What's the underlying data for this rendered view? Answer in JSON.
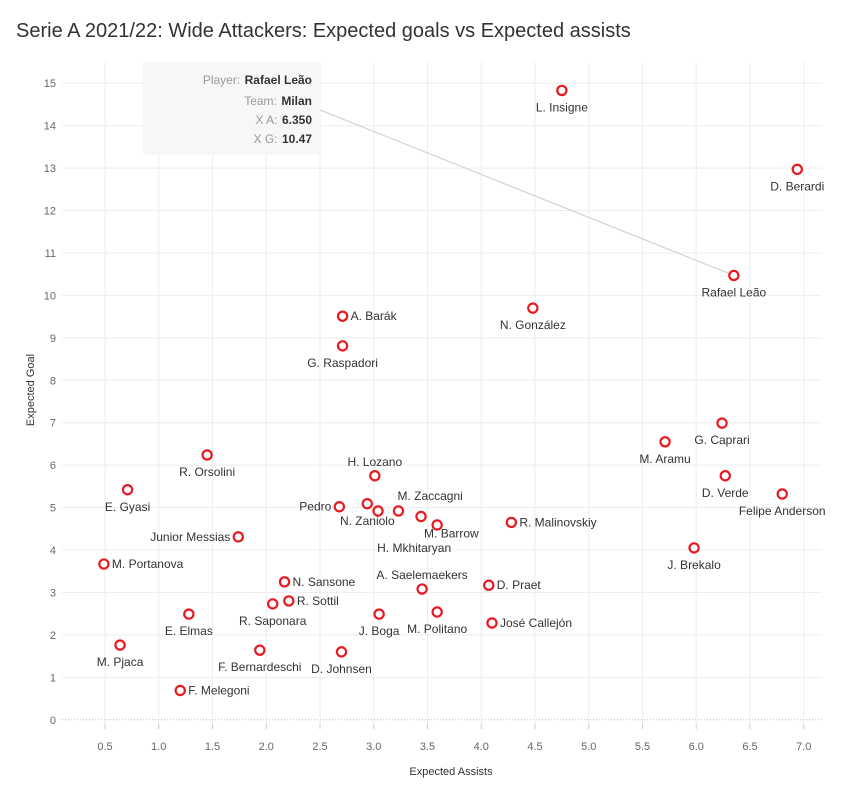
{
  "title": "Serie A 2021/22: Wide Attackers: Expected goals vs Expected assists",
  "tooltip": {
    "player_label": "Player:",
    "player": "Rafael Leão",
    "team_label": "Team:",
    "team": "Milan",
    "xa_label": "X A:",
    "xa": "6.350",
    "xg_label": "X G:",
    "xg": "10.47"
  },
  "chart_data": {
    "type": "scatter",
    "title": "Serie A 2021/22: Wide Attackers: Expected goals vs Expected assists",
    "xlabel": "Expected Assists",
    "ylabel": "Expected Goal",
    "xlim": [
      0.1,
      7.17
    ],
    "ylim": [
      -0.1,
      15.5
    ],
    "xticks": [
      "0.5",
      "1.0",
      "1.5",
      "2.0",
      "2.5",
      "3.0",
      "3.5",
      "4.0",
      "4.5",
      "5.0",
      "5.5",
      "6.0",
      "6.5",
      "7.0"
    ],
    "yticks": [
      "0",
      "1",
      "2",
      "3",
      "4",
      "5",
      "6",
      "7",
      "8",
      "9",
      "10",
      "11",
      "12",
      "13",
      "14",
      "15"
    ],
    "grid": true,
    "marker_color": "#e8191f",
    "points": [
      {
        "name": "L. Insigne",
        "x": 4.75,
        "y": 14.83,
        "pos": "below"
      },
      {
        "name": "D. Berardi",
        "x": 6.94,
        "y": 12.97,
        "pos": "below"
      },
      {
        "name": "Rafael Leão",
        "x": 6.35,
        "y": 10.47,
        "pos": "below"
      },
      {
        "name": "N. González",
        "x": 4.48,
        "y": 9.7,
        "pos": "below"
      },
      {
        "name": "A. Barák",
        "x": 2.71,
        "y": 9.51,
        "pos": "right"
      },
      {
        "name": "G. Raspadori",
        "x": 2.71,
        "y": 8.81,
        "pos": "below"
      },
      {
        "name": "G. Caprari",
        "x": 6.24,
        "y": 6.99,
        "pos": "below"
      },
      {
        "name": "M. Aramu",
        "x": 5.71,
        "y": 6.55,
        "pos": "below"
      },
      {
        "name": "R. Orsolini",
        "x": 1.45,
        "y": 6.24,
        "pos": "below"
      },
      {
        "name": "H. Lozano",
        "x": 3.01,
        "y": 5.75,
        "pos": "above"
      },
      {
        "name": "D. Verde",
        "x": 6.27,
        "y": 5.75,
        "pos": "below"
      },
      {
        "name": "E. Gyasi",
        "x": 0.71,
        "y": 5.42,
        "pos": "below"
      },
      {
        "name": "Felipe Anderson",
        "x": 6.8,
        "y": 5.32,
        "pos": "below"
      },
      {
        "name": "Pedro",
        "x": 2.68,
        "y": 5.02,
        "pos": "left"
      },
      {
        "name": "N. Zaniolo",
        "x": 2.94,
        "y": 5.09,
        "pos": "below"
      },
      {
        "name": "",
        "x": 3.04,
        "y": 4.92,
        "pos": "none"
      },
      {
        "name": "M. Zaccagni",
        "x": 3.23,
        "y": 4.92,
        "pos": "aboveright"
      },
      {
        "name": "M. Barrow",
        "x": 3.44,
        "y": 4.79,
        "pos": "below"
      },
      {
        "name": "H. Mkhitaryan",
        "x": 3.59,
        "y": 4.59,
        "pos": "below"
      },
      {
        "name": "R. Malinovskiy",
        "x": 4.28,
        "y": 4.65,
        "pos": "right"
      },
      {
        "name": "Junior Messias",
        "x": 1.74,
        "y": 4.31,
        "pos": "left"
      },
      {
        "name": "J. Brekalo",
        "x": 5.98,
        "y": 4.05,
        "pos": "below"
      },
      {
        "name": "M. Portanova",
        "x": 0.49,
        "y": 3.67,
        "pos": "right"
      },
      {
        "name": "N. Sansone",
        "x": 2.17,
        "y": 3.25,
        "pos": "right"
      },
      {
        "name": "A. Saelemaekers",
        "x": 3.45,
        "y": 3.08,
        "pos": "above"
      },
      {
        "name": "D. Praet",
        "x": 4.07,
        "y": 3.17,
        "pos": "right"
      },
      {
        "name": "E. Elmas",
        "x": 1.28,
        "y": 2.49,
        "pos": "below"
      },
      {
        "name": "R. Saponara",
        "x": 2.06,
        "y": 2.73,
        "pos": "below"
      },
      {
        "name": "R. Sottil",
        "x": 2.21,
        "y": 2.8,
        "pos": "right"
      },
      {
        "name": "J. Boga",
        "x": 3.05,
        "y": 2.49,
        "pos": "below"
      },
      {
        "name": "M. Politano",
        "x": 3.59,
        "y": 2.54,
        "pos": "below"
      },
      {
        "name": "José Callejón",
        "x": 4.1,
        "y": 2.28,
        "pos": "right"
      },
      {
        "name": "M. Pjaca",
        "x": 0.64,
        "y": 1.76,
        "pos": "below"
      },
      {
        "name": "F. Bernardeschi",
        "x": 1.94,
        "y": 1.64,
        "pos": "below"
      },
      {
        "name": "D. Johnsen",
        "x": 2.7,
        "y": 1.6,
        "pos": "below"
      },
      {
        "name": "F. Melegoni",
        "x": 1.2,
        "y": 0.69,
        "pos": "right"
      }
    ]
  }
}
